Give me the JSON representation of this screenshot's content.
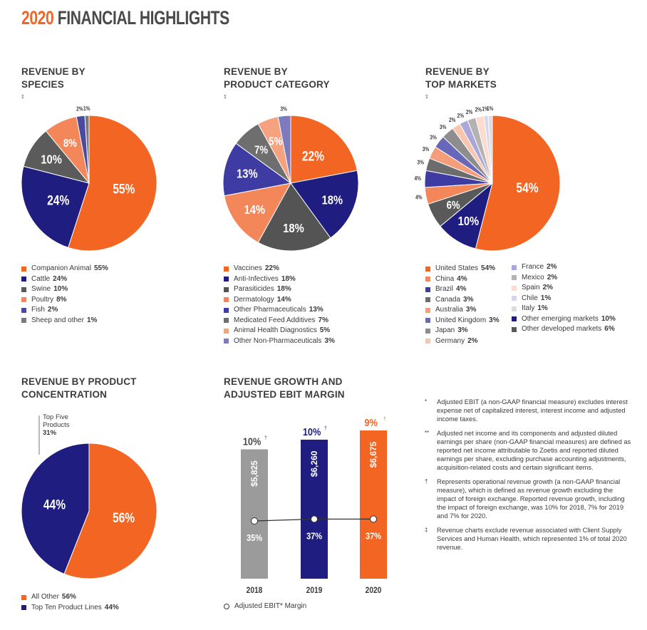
{
  "title": {
    "year": "2020",
    "rest": "FINANCIAL HIGHLIGHTS"
  },
  "colors": {
    "orange": "#f26522",
    "navy": "#1f1d7f",
    "gray": "#5b5b5b",
    "lightorange": "#f4875a",
    "purple": "#4c4aa0",
    "midgray": "#8c8c8c"
  },
  "sections": {
    "species": {
      "line1": "REVENUE BY",
      "line2": "SPECIES",
      "mark": "‡"
    },
    "category": {
      "line1": "REVENUE BY",
      "line2": "PRODUCT CATEGORY",
      "mark": "‡"
    },
    "markets": {
      "line1": "REVENUE BY",
      "line2": "TOP MARKETS",
      "mark": "‡"
    },
    "concentration": {
      "line1": "REVENUE BY PRODUCT",
      "line2": "CONCENTRATION"
    },
    "growth": {
      "line1": "REVENUE GROWTH AND",
      "line2": "ADJUSTED EBIT MARGIN"
    }
  },
  "chart_data": [
    {
      "type": "pie",
      "title": "REVENUE BY SPECIES",
      "slices": [
        {
          "label": "Companion Animal",
          "value": 55,
          "text": "55%",
          "color": "#f26522"
        },
        {
          "label": "Cattle",
          "value": 24,
          "text": "24%",
          "color": "#1f1d7f"
        },
        {
          "label": "Swine",
          "value": 10,
          "text": "10%",
          "color": "#5b5b5b"
        },
        {
          "label": "Poultry",
          "value": 8,
          "text": "8%",
          "color": "#f4875a"
        },
        {
          "label": "Fish",
          "value": 2,
          "text": "2%",
          "color": "#4c4aa0"
        },
        {
          "label": "Sheep and other",
          "value": 1,
          "text": "1%",
          "color": "#7a7a7a"
        }
      ]
    },
    {
      "type": "pie",
      "title": "REVENUE BY PRODUCT CATEGORY",
      "slices": [
        {
          "label": "Vaccines",
          "value": 22,
          "text": "22%",
          "color": "#f26522"
        },
        {
          "label": "Anti-Infectives",
          "value": 18,
          "text": "18%",
          "color": "#1f1d7f"
        },
        {
          "label": "Parasiticides",
          "value": 18,
          "text": "18%",
          "color": "#545454"
        },
        {
          "label": "Dermatology",
          "value": 14,
          "text": "14%",
          "color": "#f4875a"
        },
        {
          "label": "Other Pharmaceuticals",
          "value": 13,
          "text": "13%",
          "color": "#3e3ca3"
        },
        {
          "label": "Medicated Feed Additives",
          "value": 7,
          "text": "7%",
          "color": "#6e6e6e"
        },
        {
          "label": "Animal Health Diagnostics",
          "value": 5,
          "text": "5%",
          "color": "#f7a27e"
        },
        {
          "label": "Other Non-Pharmaceuticals",
          "value": 3,
          "text": "3%",
          "color": "#7c7bc0"
        }
      ]
    },
    {
      "type": "pie",
      "title": "REVENUE BY TOP MARKETS",
      "slices": [
        {
          "label": "United States",
          "value": 54,
          "text": "54%",
          "color": "#f26522"
        },
        {
          "label": "Other emerging markets",
          "value": 10,
          "text": "10%",
          "color": "#1f1d7f"
        },
        {
          "label": "Other developed markets",
          "value": 6,
          "text": "6%",
          "color": "#595959"
        },
        {
          "label": "China",
          "value": 4,
          "text": "4%",
          "color": "#f4875a"
        },
        {
          "label": "Brazil",
          "value": 4,
          "text": "4%",
          "color": "#3e3ca3"
        },
        {
          "label": "Canada",
          "value": 3,
          "text": "3%",
          "color": "#6c6c6c"
        },
        {
          "label": "Australia",
          "value": 3,
          "text": "3%",
          "color": "#f59c78"
        },
        {
          "label": "United Kingdom",
          "value": 3,
          "text": "3%",
          "color": "#6968b8"
        },
        {
          "label": "Japan",
          "value": 3,
          "text": "3%",
          "color": "#8d8d8d"
        },
        {
          "label": "Germany",
          "value": 2,
          "text": "2%",
          "color": "#f9c6ad"
        },
        {
          "label": "France",
          "value": 2,
          "text": "2%",
          "color": "#a9a8d8"
        },
        {
          "label": "Mexico",
          "value": 2,
          "text": "2%",
          "color": "#b3b3b3"
        },
        {
          "label": "Spain",
          "value": 2,
          "text": "2%",
          "color": "#fbdccd"
        },
        {
          "label": "Chile",
          "value": 1,
          "text": "1%",
          "color": "#d6d5ee"
        },
        {
          "label": "Italy",
          "value": 1,
          "text": "1%",
          "color": "#dcdcdc"
        }
      ]
    },
    {
      "type": "pie",
      "title": "REVENUE BY PRODUCT CONCENTRATION",
      "slices": [
        {
          "label": "All Other",
          "value": 56,
          "text": "56%",
          "color": "#f26522"
        },
        {
          "label": "Top Ten Product Lines",
          "value": 44,
          "text": "44%",
          "color": "#1f1d7f"
        }
      ],
      "annotation": {
        "line1": "Top Five",
        "line2": "Products",
        "value": "31%"
      }
    },
    {
      "type": "bar",
      "title": "REVENUE GROWTH AND ADJUSTED EBIT MARGIN",
      "categories": [
        "2018",
        "2019",
        "2020"
      ],
      "revenue": [
        5825,
        6260,
        6675
      ],
      "revenue_labels": [
        "$5,825",
        "$6,260",
        "$6,675"
      ],
      "growth_labels": [
        "10%",
        "10%",
        "9%"
      ],
      "growth_mark": "†",
      "ebit_margin": [
        35,
        37,
        37
      ],
      "ebit_labels": [
        "35%",
        "37%",
        "37%"
      ],
      "bar_colors": [
        "#9b9b9b",
        "#1f1d7f",
        "#f26522"
      ],
      "ylim": [
        0,
        6675
      ],
      "legend": "Adjusted EBIT* Margin"
    }
  ],
  "legends": {
    "species": [
      {
        "label": "Companion Animal",
        "value": "55%"
      },
      {
        "label": "Cattle",
        "value": "24%"
      },
      {
        "label": "Swine",
        "value": "10%"
      },
      {
        "label": "Poultry",
        "value": "8%"
      },
      {
        "label": "Fish",
        "value": "2%"
      },
      {
        "label": "Sheep and other",
        "value": "1%"
      }
    ],
    "category": [
      {
        "label": "Vaccines",
        "value": "22%"
      },
      {
        "label": "Anti-Infectives",
        "value": "18%"
      },
      {
        "label": "Parasiticides",
        "value": "18%"
      },
      {
        "label": "Dermatology",
        "value": "14%"
      },
      {
        "label": "Other Pharmaceuticals",
        "value": "13%"
      },
      {
        "label": "Medicated Feed Additives",
        "value": "7%"
      },
      {
        "label": "Animal Health Diagnostics",
        "value": "5%"
      },
      {
        "label": "Other Non-Pharmaceuticals",
        "value": "3%"
      }
    ],
    "markets_col1": [
      {
        "label": "United States",
        "value": "54%"
      },
      {
        "label": "China",
        "value": "4%"
      },
      {
        "label": "Brazil",
        "value": "4%"
      },
      {
        "label": "Canada",
        "value": "3%"
      },
      {
        "label": "Australia",
        "value": "3%"
      },
      {
        "label": "United Kingdom",
        "value": "3%"
      },
      {
        "label": "Japan",
        "value": "3%"
      },
      {
        "label": "Germany",
        "value": "2%"
      }
    ],
    "markets_col2": [
      {
        "label": "France",
        "value": "2%"
      },
      {
        "label": "Mexico",
        "value": "2%"
      },
      {
        "label": "Spain",
        "value": "2%"
      },
      {
        "label": "Chile",
        "value": "1%"
      },
      {
        "label": "Italy",
        "value": "1%"
      },
      {
        "label": "Other emerging markets",
        "value": "10%"
      },
      {
        "label": "Other developed markets",
        "value": "6%"
      }
    ],
    "concentration": [
      {
        "label": "All Other",
        "value": "56%"
      },
      {
        "label": "Top Ten Product Lines",
        "value": "44%"
      }
    ]
  },
  "notes": [
    {
      "mark": "*",
      "text": "Adjusted EBIT (a non-GAAP financial measure) excludes interest expense net of capitalized interest, interest income and adjusted income taxes."
    },
    {
      "mark": "**",
      "text": "Adjusted net income and its components and adjusted diluted earnings per share (non-GAAP financial measures) are defined as reported net income attributable to Zoetis and reported diluted earnings per share, excluding purchase accounting adjustments, acquisition-related costs and certain significant items."
    },
    {
      "mark": "†",
      "text": "Represents operational revenue growth (a non-GAAP financial measure), which is defined as revenue growth excluding the impact of foreign exchange. Reported revenue growth, including the impact of foreign exchange, was 10% for 2018, 7% for 2019 and 7% for 2020."
    },
    {
      "mark": "‡",
      "text": "Revenue charts exclude revenue associated with Client Supply Services and Human Health, which represented 1% of total 2020 revenue."
    }
  ]
}
